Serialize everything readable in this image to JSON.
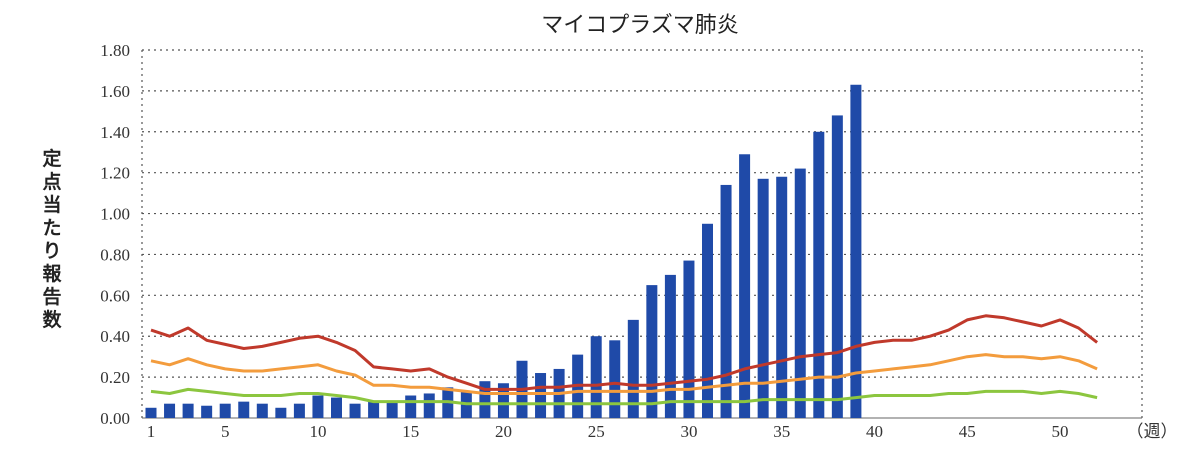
{
  "chart_data": {
    "type": "bar",
    "title": "マイコプラズマ肺炎",
    "ylabel": "定点当たり報告数",
    "xunit": "（週）",
    "ylim": [
      0,
      1.8
    ],
    "yticks": [
      "0.00",
      "0.20",
      "0.40",
      "0.60",
      "0.80",
      "1.00",
      "1.20",
      "1.40",
      "1.60",
      "1.80"
    ],
    "xticks": [
      1,
      5,
      10,
      15,
      20,
      25,
      30,
      35,
      40,
      45,
      50
    ],
    "grid": "horizontal-dotted",
    "bar_color": "#1f4aa8",
    "weeks": 52,
    "series": [
      {
        "kind": "bar",
        "color": "#1f4aa8",
        "values": [
          0.05,
          0.07,
          0.07,
          0.06,
          0.07,
          0.08,
          0.07,
          0.05,
          0.07,
          0.11,
          0.1,
          0.07,
          0.08,
          0.08,
          0.11,
          0.12,
          0.15,
          0.13,
          0.18,
          0.17,
          0.28,
          0.22,
          0.24,
          0.31,
          0.4,
          0.38,
          0.48,
          0.65,
          0.7,
          0.77,
          0.95,
          1.14,
          1.29,
          1.17,
          1.18,
          1.22,
          1.4,
          1.48,
          1.63
        ]
      },
      {
        "kind": "line",
        "color": "#c0392b",
        "values": [
          0.43,
          0.4,
          0.44,
          0.38,
          0.36,
          0.34,
          0.35,
          0.37,
          0.39,
          0.4,
          0.37,
          0.33,
          0.25,
          0.24,
          0.23,
          0.24,
          0.2,
          0.17,
          0.14,
          0.14,
          0.14,
          0.15,
          0.15,
          0.16,
          0.16,
          0.17,
          0.16,
          0.16,
          0.17,
          0.18,
          0.19,
          0.21,
          0.24,
          0.26,
          0.28,
          0.3,
          0.31,
          0.32,
          0.35,
          0.37,
          0.38,
          0.38,
          0.4,
          0.43,
          0.48,
          0.5,
          0.49,
          0.47,
          0.45,
          0.48,
          0.44,
          0.37
        ]
      },
      {
        "kind": "line",
        "color": "#f39c3d",
        "values": [
          0.28,
          0.26,
          0.29,
          0.26,
          0.24,
          0.23,
          0.23,
          0.24,
          0.25,
          0.26,
          0.23,
          0.21,
          0.16,
          0.16,
          0.15,
          0.15,
          0.14,
          0.13,
          0.12,
          0.12,
          0.12,
          0.12,
          0.12,
          0.13,
          0.13,
          0.13,
          0.13,
          0.13,
          0.14,
          0.14,
          0.15,
          0.16,
          0.17,
          0.17,
          0.18,
          0.19,
          0.2,
          0.2,
          0.22,
          0.23,
          0.24,
          0.25,
          0.26,
          0.28,
          0.3,
          0.31,
          0.3,
          0.3,
          0.29,
          0.3,
          0.28,
          0.24
        ]
      },
      {
        "kind": "line",
        "color": "#8cc63f",
        "values": [
          0.13,
          0.12,
          0.14,
          0.13,
          0.12,
          0.11,
          0.11,
          0.11,
          0.12,
          0.12,
          0.11,
          0.1,
          0.08,
          0.08,
          0.08,
          0.08,
          0.08,
          0.07,
          0.07,
          0.07,
          0.07,
          0.07,
          0.07,
          0.07,
          0.07,
          0.07,
          0.07,
          0.07,
          0.08,
          0.08,
          0.08,
          0.08,
          0.08,
          0.09,
          0.09,
          0.09,
          0.09,
          0.09,
          0.1,
          0.11,
          0.11,
          0.11,
          0.11,
          0.12,
          0.12,
          0.13,
          0.13,
          0.13,
          0.12,
          0.13,
          0.12,
          0.1
        ]
      }
    ]
  }
}
